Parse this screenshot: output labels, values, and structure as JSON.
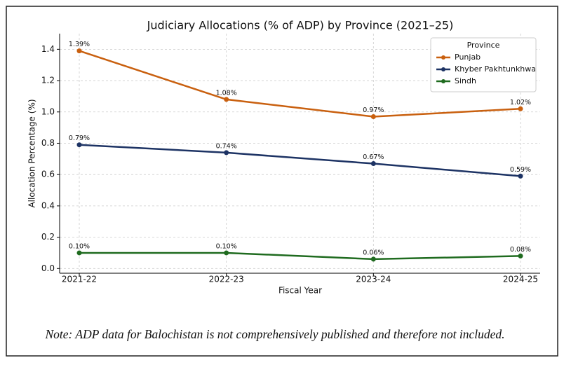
{
  "chart_data": {
    "type": "line",
    "title": "Judiciary Allocations (% of ADP) by Province (2021–25)",
    "x_label": "Fiscal Year",
    "y_label": "Allocation Percentage (%)",
    "categories": [
      "2021-22",
      "2022-23",
      "2023-24",
      "2024-25"
    ],
    "series": [
      {
        "name": "Punjab",
        "color": "#c9600f",
        "values": [
          1.39,
          1.08,
          0.97,
          1.02
        ],
        "value_labels": [
          "1.39%",
          "1.08%",
          "0.97%",
          "1.02%"
        ]
      },
      {
        "name": "Khyber Pakhtunkhwa",
        "color": "#1d3364",
        "values": [
          0.79,
          0.74,
          0.67,
          0.59
        ],
        "value_labels": [
          "0.79%",
          "0.74%",
          "0.67%",
          "0.59%"
        ]
      },
      {
        "name": "Sindh",
        "color": "#1f6b1f",
        "values": [
          0.1,
          0.1,
          0.06,
          0.08
        ],
        "value_labels": [
          "0.10%",
          "0.10%",
          "0.06%",
          "0.08%"
        ]
      }
    ],
    "ylim": [
      -0.03,
      1.5
    ],
    "yticks": [
      {
        "value": 0,
        "label": "0.0"
      },
      0.2,
      0.4,
      0.6,
      0.8,
      {
        "value": 1,
        "label": "1.0"
      },
      1.2,
      1.4
    ],
    "grid": true,
    "legend_title": "Province",
    "legend_position": "upper-right",
    "note": "Note: ADP data for Balochistan is not comprehensively published and therefore not included."
  }
}
